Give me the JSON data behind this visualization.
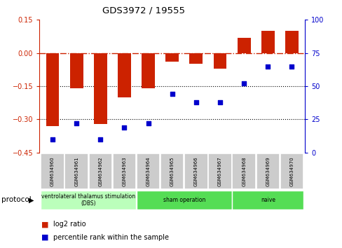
{
  "title": "GDS3972 / 19555",
  "samples": [
    "GSM634960",
    "GSM634961",
    "GSM634962",
    "GSM634963",
    "GSM634964",
    "GSM634965",
    "GSM634966",
    "GSM634967",
    "GSM634968",
    "GSM634969",
    "GSM634970"
  ],
  "log2_ratio": [
    -0.33,
    -0.16,
    -0.32,
    -0.2,
    -0.16,
    -0.04,
    -0.05,
    -0.07,
    0.07,
    0.1,
    0.1
  ],
  "percentile_rank": [
    10,
    22,
    10,
    19,
    22,
    44,
    38,
    38,
    52,
    65,
    65
  ],
  "bar_color": "#cc2200",
  "dot_color": "#0000cc",
  "left_ylim": [
    -0.45,
    0.15
  ],
  "right_ylim": [
    0,
    100
  ],
  "left_yticks": [
    0.15,
    0,
    -0.15,
    -0.3,
    -0.45
  ],
  "right_yticks": [
    100,
    75,
    50,
    25,
    0
  ],
  "dotted_lines": [
    -0.15,
    -0.3
  ],
  "protocol_groups": [
    {
      "label": "ventrolateral thalamus stimulation\n(DBS)",
      "start": 0,
      "end": 4,
      "color": "#ccffcc"
    },
    {
      "label": "sham operation",
      "start": 4,
      "end": 8,
      "color": "#44cc44"
    },
    {
      "label": "naive",
      "start": 8,
      "end": 11,
      "color": "#44cc44"
    }
  ],
  "legend_bar_label": "log2 ratio",
  "legend_dot_label": "percentile rank within the sample",
  "protocol_label": "protocol"
}
